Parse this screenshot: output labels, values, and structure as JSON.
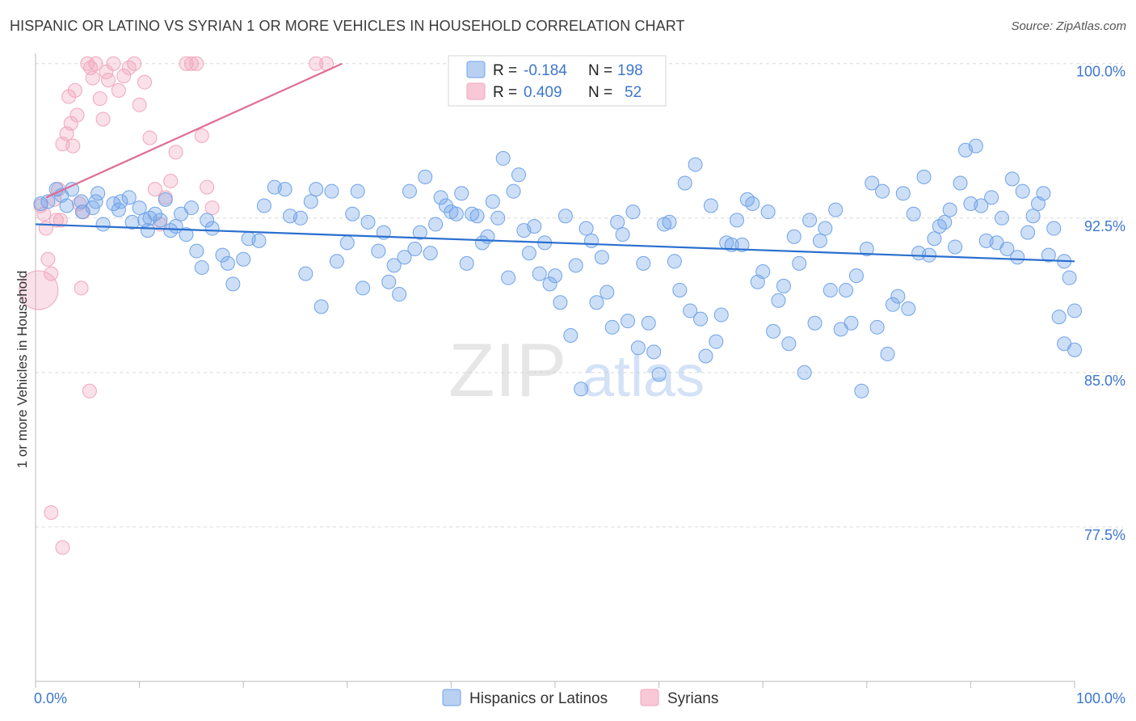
{
  "title": "HISPANIC OR LATINO VS SYRIAN 1 OR MORE VEHICLES IN HOUSEHOLD CORRELATION CHART",
  "source": "Source: ZipAtlas.com",
  "watermark": {
    "zip": "ZIP",
    "atlas": "atlas"
  },
  "colors": {
    "blue": "#6fa3e8",
    "blue_line": "#2a6fce",
    "pink": "#f0a6bd",
    "pink_line": "#e06d95",
    "axis_text": "#3d76cf",
    "grid": "#d9d9d9"
  },
  "legend": {
    "rows": [
      {
        "r_label": "R = ",
        "r_value": "-0.184",
        "n_label": "N = ",
        "n_value": "198"
      },
      {
        "r_label": "R = ",
        "r_value": "0.409",
        "n_label": "N = ",
        "n_value": "52"
      }
    ]
  },
  "chart_data": {
    "type": "scatter",
    "title": "HISPANIC OR LATINO VS SYRIAN 1 OR MORE VEHICLES IN HOUSEHOLD CORRELATION CHART",
    "xlabel": "",
    "ylabel": "1 or more Vehicles in Household",
    "xlim": [
      0,
      100
    ],
    "ylim": [
      70.0,
      100.5
    ],
    "x_tick_labels": [
      "0.0%",
      "100.0%"
    ],
    "y_ticks": [
      77.5,
      85.0,
      92.5,
      100.0
    ],
    "y_tick_labels": [
      "77.5%",
      "85.0%",
      "92.5%",
      "100.0%"
    ],
    "grid": "horizontal-dashed",
    "legend_placement": "bottom-center",
    "series": [
      {
        "name": "Hispanics or Latinos",
        "color": "#6fa3e8",
        "trend": {
          "x": [
            0,
            100
          ],
          "y": [
            92.2,
            90.4
          ]
        },
        "points": [
          [
            0.5,
            93.2
          ],
          [
            1.2,
            93.3
          ],
          [
            2.0,
            93.9
          ],
          [
            3.5,
            93.9
          ],
          [
            4.5,
            92.8
          ],
          [
            4.4,
            93.3
          ],
          [
            5.5,
            93.0
          ],
          [
            6.0,
            93.7
          ],
          [
            5.8,
            93.3
          ],
          [
            7.5,
            93.2
          ],
          [
            8.2,
            93.3
          ],
          [
            9.3,
            92.3
          ],
          [
            10.5,
            92.4
          ],
          [
            10.0,
            93.0
          ],
          [
            11.0,
            92.5
          ],
          [
            11.5,
            92.7
          ],
          [
            12.0,
            92.4
          ],
          [
            10.8,
            91.9
          ],
          [
            13.0,
            91.9
          ],
          [
            14.0,
            92.7
          ],
          [
            14.5,
            91.7
          ],
          [
            15.0,
            93.0
          ],
          [
            16.5,
            92.4
          ],
          [
            17.0,
            92.0
          ],
          [
            18.0,
            90.7
          ],
          [
            18.5,
            90.3
          ],
          [
            20.0,
            90.5
          ],
          [
            21.5,
            91.4
          ],
          [
            22.0,
            93.1
          ],
          [
            23.0,
            94.0
          ],
          [
            24.5,
            92.6
          ],
          [
            25.5,
            92.5
          ],
          [
            26.5,
            93.3
          ],
          [
            27.0,
            93.9
          ],
          [
            28.5,
            93.8
          ],
          [
            30.0,
            91.3
          ],
          [
            30.5,
            92.7
          ],
          [
            31.0,
            93.8
          ],
          [
            32.0,
            92.3
          ],
          [
            33.0,
            90.9
          ],
          [
            34.0,
            89.4
          ],
          [
            35.0,
            88.8
          ],
          [
            35.5,
            90.6
          ],
          [
            36.0,
            93.8
          ],
          [
            37.5,
            94.5
          ],
          [
            38.5,
            92.2
          ],
          [
            39.0,
            93.5
          ],
          [
            40.5,
            92.7
          ],
          [
            41.0,
            93.7
          ],
          [
            42.0,
            92.7
          ],
          [
            42.5,
            92.6
          ],
          [
            43.5,
            91.6
          ],
          [
            44.0,
            93.3
          ],
          [
            45.5,
            89.6
          ],
          [
            46.0,
            93.8
          ],
          [
            47.0,
            91.9
          ],
          [
            47.5,
            90.8
          ],
          [
            48.0,
            92.1
          ],
          [
            49.0,
            91.3
          ],
          [
            50.5,
            88.4
          ],
          [
            51.0,
            92.6
          ],
          [
            52.0,
            90.2
          ],
          [
            53.0,
            92.0
          ],
          [
            53.5,
            91.4
          ],
          [
            54.5,
            90.6
          ],
          [
            55.0,
            88.9
          ],
          [
            56.0,
            92.3
          ],
          [
            57.0,
            87.5
          ],
          [
            58.0,
            86.2
          ],
          [
            59.5,
            86.0
          ],
          [
            60.5,
            92.2
          ],
          [
            61.0,
            92.3
          ],
          [
            61.5,
            90.4
          ],
          [
            62.0,
            89.0
          ],
          [
            63.0,
            88.0
          ],
          [
            64.0,
            87.6
          ],
          [
            64.5,
            85.8
          ],
          [
            65.5,
            86.5
          ],
          [
            66.0,
            87.8
          ],
          [
            67.0,
            91.2
          ],
          [
            67.5,
            92.4
          ],
          [
            68.5,
            93.4
          ],
          [
            69.5,
            89.4
          ],
          [
            70.0,
            89.9
          ],
          [
            71.0,
            87.0
          ],
          [
            71.5,
            88.5
          ],
          [
            72.0,
            89.2
          ],
          [
            73.0,
            91.6
          ],
          [
            73.5,
            90.3
          ],
          [
            74.5,
            92.4
          ],
          [
            75.5,
            91.4
          ],
          [
            76.0,
            92.0
          ],
          [
            77.0,
            92.9
          ],
          [
            78.0,
            89.0
          ],
          [
            79.0,
            89.7
          ],
          [
            80.0,
            91.0
          ],
          [
            81.0,
            87.2
          ],
          [
            82.0,
            85.9
          ],
          [
            82.5,
            88.3
          ],
          [
            83.0,
            88.7
          ],
          [
            84.0,
            88.1
          ],
          [
            85.0,
            90.8
          ],
          [
            86.0,
            90.7
          ],
          [
            87.0,
            92.1
          ],
          [
            88.0,
            92.9
          ],
          [
            89.0,
            94.2
          ],
          [
            90.0,
            93.2
          ],
          [
            91.0,
            93.1
          ],
          [
            92.0,
            93.5
          ],
          [
            93.0,
            92.5
          ],
          [
            94.0,
            94.4
          ],
          [
            95.0,
            93.8
          ],
          [
            96.0,
            92.6
          ],
          [
            97.0,
            93.7
          ],
          [
            98.0,
            92.0
          ],
          [
            99.0,
            90.4
          ],
          [
            99.5,
            89.6
          ],
          [
            2.5,
            93.6
          ],
          [
            3.0,
            93.1
          ],
          [
            6.5,
            92.2
          ],
          [
            8.0,
            92.9
          ],
          [
            9.0,
            93.5
          ],
          [
            12.5,
            93.4
          ],
          [
            13.5,
            92.1
          ],
          [
            15.5,
            90.9
          ],
          [
            16.0,
            90.1
          ],
          [
            19.0,
            89.3
          ],
          [
            20.5,
            91.5
          ],
          [
            24.0,
            93.9
          ],
          [
            26.0,
            89.8
          ],
          [
            27.5,
            88.2
          ],
          [
            29.0,
            90.4
          ],
          [
            31.5,
            89.1
          ],
          [
            33.5,
            91.8
          ],
          [
            34.5,
            90.2
          ],
          [
            36.5,
            91.0
          ],
          [
            37.0,
            91.8
          ],
          [
            38.0,
            90.8
          ],
          [
            39.5,
            93.1
          ],
          [
            40.0,
            92.8
          ],
          [
            41.5,
            90.3
          ],
          [
            43.0,
            91.3
          ],
          [
            44.5,
            92.5
          ],
          [
            45.0,
            95.4
          ],
          [
            46.5,
            94.6
          ],
          [
            48.5,
            89.8
          ],
          [
            49.5,
            89.3
          ],
          [
            50.0,
            89.7
          ],
          [
            51.5,
            86.8
          ],
          [
            52.5,
            84.2
          ],
          [
            54.0,
            88.4
          ],
          [
            55.5,
            87.2
          ],
          [
            56.5,
            91.7
          ],
          [
            57.5,
            92.8
          ],
          [
            58.5,
            90.3
          ],
          [
            59.0,
            87.4
          ],
          [
            60.0,
            84.9
          ],
          [
            62.5,
            94.2
          ],
          [
            63.5,
            95.1
          ],
          [
            65.0,
            93.1
          ],
          [
            66.5,
            91.3
          ],
          [
            68.0,
            91.2
          ],
          [
            69.0,
            93.2
          ],
          [
            70.5,
            92.8
          ],
          [
            72.5,
            86.4
          ],
          [
            74.0,
            85.0
          ],
          [
            75.0,
            87.4
          ],
          [
            76.5,
            89.0
          ],
          [
            77.5,
            87.1
          ],
          [
            78.5,
            87.4
          ],
          [
            79.5,
            84.1
          ],
          [
            80.5,
            94.2
          ],
          [
            81.5,
            93.8
          ],
          [
            83.5,
            93.7
          ],
          [
            84.5,
            92.7
          ],
          [
            85.5,
            94.5
          ],
          [
            86.5,
            91.5
          ],
          [
            87.5,
            92.3
          ],
          [
            88.5,
            91.1
          ],
          [
            89.5,
            95.8
          ],
          [
            90.5,
            96.0
          ],
          [
            91.5,
            91.4
          ],
          [
            92.5,
            91.3
          ],
          [
            93.5,
            91.0
          ],
          [
            94.5,
            90.6
          ],
          [
            95.5,
            91.8
          ],
          [
            96.5,
            93.2
          ],
          [
            97.5,
            90.7
          ],
          [
            98.5,
            87.7
          ],
          [
            99.0,
            86.4
          ],
          [
            100.0,
            88.0
          ],
          [
            100.0,
            86.1
          ]
        ]
      },
      {
        "name": "Syrians",
        "color": "#f0a6bd",
        "trend": {
          "x": [
            1,
            29.5
          ],
          "y": [
            93.5,
            100.0
          ]
        },
        "points": [
          [
            0.3,
            89.0
          ],
          [
            0.5,
            93.1
          ],
          [
            0.8,
            92.7
          ],
          [
            1.0,
            92.0
          ],
          [
            1.2,
            90.5
          ],
          [
            1.5,
            89.8
          ],
          [
            1.8,
            93.4
          ],
          [
            2.0,
            92.4
          ],
          [
            2.2,
            93.9
          ],
          [
            2.4,
            92.4
          ],
          [
            2.6,
            96.1
          ],
          [
            3.0,
            96.6
          ],
          [
            3.2,
            98.4
          ],
          [
            3.4,
            97.1
          ],
          [
            3.6,
            96.0
          ],
          [
            3.8,
            98.7
          ],
          [
            4.0,
            97.5
          ],
          [
            4.2,
            93.2
          ],
          [
            4.4,
            89.1
          ],
          [
            4.6,
            92.8
          ],
          [
            5.0,
            100.0
          ],
          [
            5.3,
            99.8
          ],
          [
            5.5,
            99.3
          ],
          [
            5.8,
            100.0
          ],
          [
            6.2,
            98.3
          ],
          [
            6.5,
            97.3
          ],
          [
            6.8,
            99.6
          ],
          [
            7.0,
            99.2
          ],
          [
            7.5,
            100.0
          ],
          [
            8.0,
            98.7
          ],
          [
            8.5,
            99.4
          ],
          [
            9.0,
            99.8
          ],
          [
            9.5,
            100.0
          ],
          [
            10.0,
            98.0
          ],
          [
            10.5,
            99.1
          ],
          [
            11.0,
            96.4
          ],
          [
            11.5,
            93.9
          ],
          [
            12.0,
            92.2
          ],
          [
            12.5,
            93.5
          ],
          [
            13.0,
            94.3
          ],
          [
            13.5,
            95.7
          ],
          [
            14.5,
            100.0
          ],
          [
            15.0,
            100.0
          ],
          [
            15.5,
            100.0
          ],
          [
            16.0,
            96.5
          ],
          [
            16.5,
            94.0
          ],
          [
            17.0,
            93.0
          ],
          [
            27.0,
            100.0
          ],
          [
            28.0,
            100.0
          ],
          [
            5.2,
            84.1
          ],
          [
            1.5,
            78.2
          ],
          [
            2.6,
            76.5
          ]
        ]
      }
    ]
  }
}
